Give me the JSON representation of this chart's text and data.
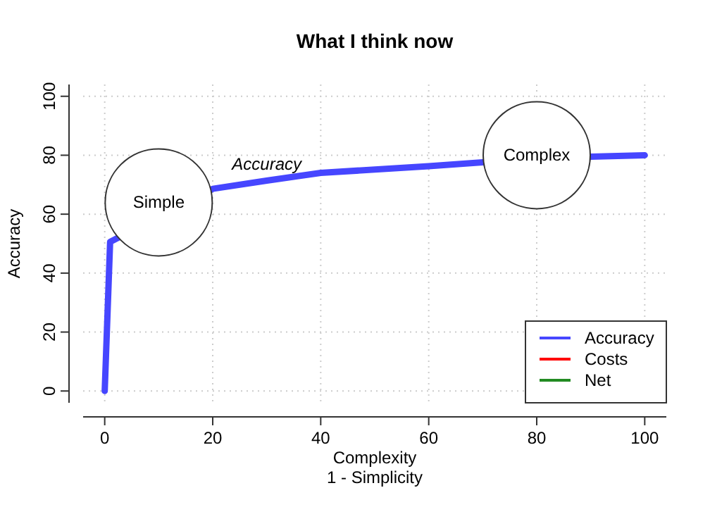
{
  "chart_data": {
    "type": "line",
    "title": "What I think now",
    "xlabel": "Complexity\n1 - Simplicity",
    "ylabel": "Accuracy",
    "xlim": [
      -4,
      104
    ],
    "ylim": [
      -4,
      104
    ],
    "xticks": [
      0,
      20,
      40,
      60,
      80,
      100
    ],
    "yticks": [
      0,
      20,
      40,
      60,
      80,
      100
    ],
    "grid": true,
    "legend": "bottom right",
    "line_style": "solid",
    "series": [
      {
        "name": "Accuracy",
        "color": "#4646ff",
        "x": [
          0,
          1,
          20,
          30,
          40,
          60,
          70,
          90,
          100
        ],
        "values": [
          0,
          50.6,
          68.6,
          71.4,
          74,
          76.3,
          77.6,
          79.5,
          80
        ]
      },
      {
        "name": "Costs",
        "color": "#ff0000"
      },
      {
        "name": "Net",
        "color": "#228b22"
      }
    ],
    "annotations": [
      "Simple",
      "Complex",
      "Accuracy"
    ]
  }
}
